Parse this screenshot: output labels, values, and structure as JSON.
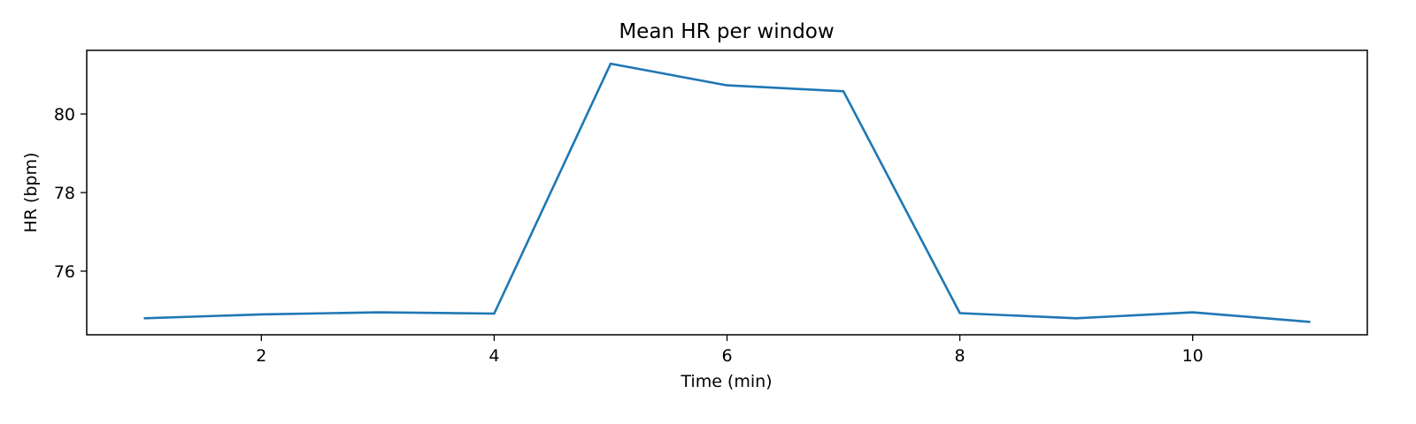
{
  "chart_data": {
    "type": "line",
    "title": "Mean HR per window",
    "xlabel": "Time (min)",
    "ylabel": "HR (bpm)",
    "xlim": [
      0.5,
      11.5
    ],
    "ylim": [
      74.38,
      81.62
    ],
    "xticks": [
      2,
      4,
      6,
      8,
      10
    ],
    "yticks": [
      76,
      78,
      80
    ],
    "grid": false,
    "series": [
      {
        "color": "#1f77b4",
        "x": [
          1,
          2,
          3,
          4,
          5,
          6,
          7,
          8,
          9,
          10,
          11
        ],
        "y": [
          74.8,
          74.9,
          74.95,
          74.92,
          81.28,
          80.73,
          80.58,
          74.93,
          74.8,
          74.95,
          74.71
        ]
      }
    ]
  }
}
